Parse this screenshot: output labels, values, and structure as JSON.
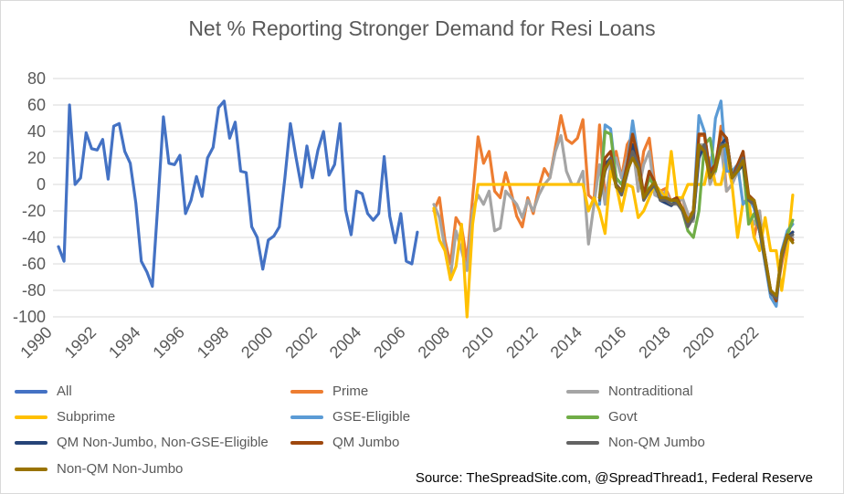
{
  "chart_data": {
    "type": "line",
    "title": "Net % Reporting Stronger Demand for Resi Loans",
    "source": "Source: TheSpreadSite.com, @SpreadThread1, Federal Reserve",
    "ylim": [
      -100,
      80
    ],
    "yticks": [
      -100,
      -80,
      -60,
      -40,
      -20,
      0,
      20,
      40,
      60,
      80
    ],
    "xlim": [
      1990,
      2024
    ],
    "xticks": [
      1990,
      1992,
      1994,
      1996,
      1998,
      2000,
      2002,
      2004,
      2006,
      2008,
      2010,
      2012,
      2014,
      2016,
      2018,
      2020,
      2022
    ],
    "grid": true,
    "legend_position": "bottom",
    "series": [
      {
        "name": "All",
        "color": "#4472C4",
        "x": [
          1990.25,
          1990.5,
          1990.75,
          1991.0,
          1991.25,
          1991.5,
          1991.75,
          1992.0,
          1992.25,
          1992.5,
          1992.75,
          1993.0,
          1993.25,
          1993.5,
          1993.75,
          1994.0,
          1994.25,
          1994.5,
          1994.75,
          1995.0,
          1995.25,
          1995.5,
          1995.75,
          1996.0,
          1996.25,
          1996.5,
          1996.75,
          1997.0,
          1997.25,
          1997.5,
          1997.75,
          1998.0,
          1998.25,
          1998.5,
          1998.75,
          1999.0,
          1999.25,
          1999.5,
          1999.75,
          2000.0,
          2000.25,
          2000.5,
          2000.75,
          2001.0,
          2001.25,
          2001.5,
          2001.75,
          2002.0,
          2002.25,
          2002.5,
          2002.75,
          2003.0,
          2003.25,
          2003.5,
          2003.75,
          2004.0,
          2004.25,
          2004.5,
          2004.75,
          2005.0,
          2005.25,
          2005.5,
          2005.75,
          2006.0,
          2006.25,
          2006.5,
          2006.75,
          2007.0
        ],
        "y": [
          -47,
          -58,
          60,
          0,
          5,
          39,
          27,
          26,
          34,
          4,
          44,
          46,
          25,
          16,
          -14,
          -58,
          -66,
          -77,
          -15,
          51,
          16,
          15,
          22,
          -22,
          -12,
          6,
          -9,
          20,
          28,
          58,
          63,
          35,
          47,
          10,
          9,
          -32,
          -40,
          -64,
          -42,
          -39,
          -32,
          5,
          46,
          21,
          -2,
          29,
          5,
          26,
          40,
          7,
          15,
          46,
          -19,
          -38,
          -5,
          -7,
          -22,
          -27,
          -22,
          21,
          -24,
          -44,
          -22,
          -58,
          -60,
          -36,
          null,
          null
        ]
      },
      {
        "name": "Prime",
        "color": "#ED7D31",
        "x": [
          2007.25,
          2007.5,
          2007.75,
          2008.0,
          2008.25,
          2008.5,
          2008.75,
          2009.0,
          2009.25,
          2009.5,
          2009.75,
          2010.0,
          2010.25,
          2010.5,
          2010.75,
          2011.0,
          2011.25,
          2011.5,
          2011.75,
          2012.0,
          2012.25,
          2012.5,
          2012.75,
          2013.0,
          2013.25,
          2013.5,
          2013.75,
          2014.0,
          2014.25,
          2014.5,
          2014.75,
          2015.0,
          2015.25,
          2015.5,
          2015.75,
          2016.0,
          2016.25,
          2016.5,
          2016.75,
          2017.0,
          2017.25,
          2017.5,
          2017.75,
          2018.0,
          2018.25,
          2018.5,
          2018.75,
          2019.0,
          2019.25,
          2019.5,
          2019.75,
          2020.0,
          2020.25,
          2020.5,
          2020.75,
          2021.0,
          2021.25,
          2021.5,
          2021.75,
          2022.0,
          2022.25,
          2022.5,
          2022.75,
          2023.0,
          2023.25,
          2023.5
        ],
        "y": [
          -20,
          -10,
          -42,
          -60,
          -25,
          -32,
          -58,
          -10,
          36,
          16,
          25,
          -5,
          -10,
          9,
          -6,
          -24,
          -32,
          -10,
          -22,
          -2,
          12,
          5,
          28,
          52,
          34,
          31,
          35,
          49,
          -8,
          -12,
          45,
          -10,
          10,
          25,
          5,
          30,
          37,
          -5,
          25,
          35,
          0,
          -5,
          -3,
          -13,
          -15,
          -10,
          -25,
          -20,
          37,
          37,
          5,
          10,
          44,
          -5,
          0,
          10,
          25,
          -15,
          -40,
          -20,
          -60,
          -80,
          -85,
          -60,
          -40,
          -36
        ]
      },
      {
        "name": "Nontraditional",
        "color": "#A5A5A5",
        "x": [
          2007.25,
          2007.5,
          2007.75,
          2008.0,
          2008.25,
          2008.5,
          2008.75,
          2009.0,
          2009.25,
          2009.5,
          2009.75,
          2010.0,
          2010.25,
          2010.5,
          2010.75,
          2011.0,
          2011.25,
          2011.5,
          2011.75,
          2012.0,
          2012.25,
          2012.5,
          2012.75,
          2013.0,
          2013.25,
          2013.5,
          2013.75,
          2014.0,
          2014.25,
          2014.5,
          2014.75,
          2015.0,
          2015.25,
          2015.5,
          2015.75,
          2016.0,
          2016.25,
          2016.5,
          2016.75,
          2017.0,
          2017.25,
          2017.5,
          2017.75,
          2018.0,
          2018.25,
          2018.5,
          2018.75,
          2019.0,
          2019.25,
          2019.5,
          2019.75,
          2020.0,
          2020.25,
          2020.5,
          2020.75,
          2021.0,
          2021.25,
          2021.5,
          2021.75,
          2022.0,
          2022.25,
          2022.5,
          2022.75,
          2023.0,
          2023.25,
          2023.5
        ],
        "y": [
          -15,
          -25,
          -48,
          -70,
          -35,
          -50,
          -65,
          -20,
          -8,
          -15,
          -5,
          -35,
          -33,
          -5,
          -10,
          -15,
          -25,
          -12,
          -20,
          -8,
          0,
          5,
          25,
          37,
          10,
          0,
          0,
          10,
          -45,
          -15,
          15,
          -15,
          15,
          20,
          5,
          20,
          30,
          -5,
          15,
          25,
          -8,
          -10,
          -5,
          -15,
          -15,
          -10,
          -22,
          -28,
          30,
          30,
          0,
          10,
          30,
          -5,
          0,
          10,
          15,
          -20,
          -30,
          -20,
          -60,
          -80,
          -87,
          -55,
          -38,
          -40
        ]
      },
      {
        "name": "Subprime",
        "color": "#FFC000",
        "x": [
          2007.25,
          2007.5,
          2007.75,
          2008.0,
          2008.25,
          2008.5,
          2008.75,
          2009.0,
          2009.25,
          2009.5,
          2009.75,
          2010.0,
          2010.25,
          2010.5,
          2010.75,
          2011.0,
          2011.25,
          2011.5,
          2011.75,
          2012.0,
          2012.25,
          2012.5,
          2012.75,
          2013.0,
          2013.25,
          2013.5,
          2013.75,
          2014.0,
          2014.25,
          2014.5,
          2014.75,
          2015.0,
          2015.25,
          2015.5,
          2015.75,
          2016.0,
          2016.25,
          2016.5,
          2016.75,
          2017.0,
          2017.25,
          2017.5,
          2017.75,
          2018.0,
          2018.25,
          2018.5,
          2018.75,
          2019.0,
          2019.25,
          2019.5,
          2019.75,
          2020.0,
          2020.25,
          2020.5,
          2020.75,
          2021.0,
          2021.25,
          2021.5,
          2021.75,
          2022.0,
          2022.25,
          2022.5,
          2022.75,
          2023.0,
          2023.25,
          2023.5
        ],
        "y": [
          -18,
          -42,
          -50,
          -72,
          -62,
          -30,
          -100,
          -30,
          0,
          0,
          0,
          0,
          0,
          0,
          0,
          0,
          0,
          0,
          0,
          0,
          0,
          0,
          0,
          0,
          0,
          0,
          0,
          0,
          -20,
          -10,
          -20,
          -37,
          10,
          0,
          -20,
          0,
          -2,
          -25,
          -20,
          -10,
          0,
          -5,
          -10,
          25,
          -10,
          -10,
          0,
          0,
          0,
          0,
          20,
          0,
          0,
          20,
          0,
          -40,
          -13,
          -12,
          -40,
          -50,
          -25,
          -50,
          -50,
          -80,
          -50,
          -8
        ]
      },
      {
        "name": "GSE-Eligible",
        "color": "#5B9BD5",
        "x": [
          2014.75,
          2015.0,
          2015.25,
          2015.5,
          2015.75,
          2016.0,
          2016.25,
          2016.5,
          2016.75,
          2017.0,
          2017.25,
          2017.5,
          2017.75,
          2018.0,
          2018.25,
          2018.5,
          2018.75,
          2019.0,
          2019.25,
          2019.5,
          2019.75,
          2020.0,
          2020.25,
          2020.5,
          2020.75,
          2021.0,
          2021.25,
          2021.5,
          2021.75,
          2022.0,
          2022.25,
          2022.5,
          2022.75,
          2023.0,
          2023.25,
          2023.5
        ],
        "y": [
          -15,
          45,
          42,
          5,
          0,
          15,
          48,
          20,
          -10,
          10,
          0,
          -8,
          -12,
          -15,
          -12,
          -20,
          -30,
          -20,
          52,
          40,
          5,
          50,
          63,
          10,
          10,
          15,
          -15,
          -10,
          -18,
          -35,
          -60,
          -85,
          -92,
          -50,
          -35,
          -30
        ]
      },
      {
        "name": "Govt",
        "color": "#70AD47",
        "x": [
          2014.75,
          2015.0,
          2015.25,
          2015.5,
          2015.75,
          2016.0,
          2016.25,
          2016.5,
          2016.75,
          2017.0,
          2017.25,
          2017.5,
          2017.75,
          2018.0,
          2018.25,
          2018.5,
          2018.75,
          2019.0,
          2019.25,
          2019.5,
          2019.75,
          2020.0,
          2020.25,
          2020.5,
          2020.75,
          2021.0,
          2021.25,
          2021.5,
          2021.75,
          2022.0,
          2022.25,
          2022.5,
          2022.75,
          2023.0,
          2023.25,
          2023.5
        ],
        "y": [
          -10,
          40,
          38,
          5,
          0,
          10,
          30,
          15,
          -10,
          5,
          -2,
          -10,
          -12,
          -15,
          -12,
          -20,
          -35,
          -40,
          -20,
          30,
          35,
          10,
          30,
          35,
          5,
          10,
          15,
          -30,
          -22,
          -35,
          -58,
          -80,
          -85,
          -55,
          -38,
          -27
        ]
      },
      {
        "name": "QM Non-Jumbo, Non-GSE-Eligible",
        "color": "#264478",
        "x": [
          2014.75,
          2015.0,
          2015.25,
          2015.5,
          2015.75,
          2016.0,
          2016.25,
          2016.5,
          2016.75,
          2017.0,
          2017.25,
          2017.5,
          2017.75,
          2018.0,
          2018.25,
          2018.5,
          2018.75,
          2019.0,
          2019.25,
          2019.5,
          2019.75,
          2020.0,
          2020.25,
          2020.5,
          2020.75,
          2021.0,
          2021.25,
          2021.5,
          2021.75,
          2022.0,
          2022.25,
          2022.5,
          2022.75,
          2023.0,
          2023.25,
          2023.5
        ],
        "y": [
          -10,
          15,
          20,
          0,
          -5,
          10,
          30,
          15,
          -10,
          -5,
          0,
          -12,
          -14,
          -16,
          -12,
          -20,
          -30,
          -25,
          20,
          30,
          5,
          15,
          30,
          35,
          5,
          10,
          15,
          -10,
          -15,
          -35,
          -55,
          -82,
          -86,
          -52,
          -40,
          -36
        ]
      },
      {
        "name": "QM Jumbo",
        "color": "#9E480E",
        "x": [
          2014.75,
          2015.0,
          2015.25,
          2015.5,
          2015.75,
          2016.0,
          2016.25,
          2016.5,
          2016.75,
          2017.0,
          2017.25,
          2017.5,
          2017.75,
          2018.0,
          2018.25,
          2018.5,
          2018.75,
          2019.0,
          2019.25,
          2019.5,
          2019.75,
          2020.0,
          2020.25,
          2020.5,
          2020.75,
          2021.0,
          2021.25,
          2021.5,
          2021.75,
          2022.0,
          2022.25,
          2022.5,
          2022.75,
          2023.0,
          2023.25,
          2023.5
        ],
        "y": [
          -10,
          20,
          25,
          0,
          -5,
          15,
          38,
          20,
          -8,
          10,
          2,
          -10,
          -10,
          -12,
          -10,
          -18,
          -28,
          -20,
          38,
          38,
          10,
          15,
          40,
          35,
          5,
          15,
          25,
          -8,
          -12,
          -30,
          -55,
          -80,
          -88,
          -52,
          -38,
          -42
        ]
      },
      {
        "name": "Non-QM Jumbo",
        "color": "#636363",
        "x": [
          2014.75,
          2015.0,
          2015.25,
          2015.5,
          2015.75,
          2016.0,
          2016.25,
          2016.5,
          2016.75,
          2017.0,
          2017.25,
          2017.5,
          2017.75,
          2018.0,
          2018.25,
          2018.5,
          2018.75,
          2019.0,
          2019.25,
          2019.5,
          2019.75,
          2020.0,
          2020.25,
          2020.5,
          2020.75,
          2021.0,
          2021.25,
          2021.5,
          2021.75,
          2022.0,
          2022.25,
          2022.5,
          2022.75,
          2023.0,
          2023.25,
          2023.5
        ],
        "y": [
          -12,
          10,
          20,
          0,
          -8,
          8,
          25,
          15,
          -12,
          -5,
          0,
          -12,
          -12,
          -15,
          -14,
          -20,
          -32,
          -25,
          25,
          30,
          5,
          12,
          30,
          30,
          5,
          12,
          20,
          -12,
          -15,
          -35,
          -58,
          -82,
          -86,
          -55,
          -40,
          -38
        ]
      },
      {
        "name": "Non-QM Non-Jumbo",
        "color": "#997300",
        "x": [
          2014.75,
          2015.0,
          2015.25,
          2015.5,
          2015.75,
          2016.0,
          2016.25,
          2016.5,
          2016.75,
          2017.0,
          2017.25,
          2017.5,
          2017.75,
          2018.0,
          2018.25,
          2018.5,
          2018.75,
          2019.0,
          2019.25,
          2019.5,
          2019.75,
          2020.0,
          2020.25,
          2020.5,
          2020.75,
          2021.0,
          2021.25,
          2021.5,
          2021.75,
          2022.0,
          2022.25,
          2022.5,
          2022.75,
          2023.0,
          2023.25,
          2023.5
        ],
        "y": [
          -10,
          12,
          18,
          -2,
          -5,
          10,
          20,
          12,
          -10,
          -3,
          2,
          -10,
          -10,
          -12,
          -12,
          -18,
          -28,
          -20,
          30,
          25,
          5,
          12,
          28,
          30,
          5,
          10,
          18,
          -10,
          -12,
          -30,
          -55,
          -80,
          -84,
          -52,
          -38,
          -44
        ]
      }
    ]
  }
}
